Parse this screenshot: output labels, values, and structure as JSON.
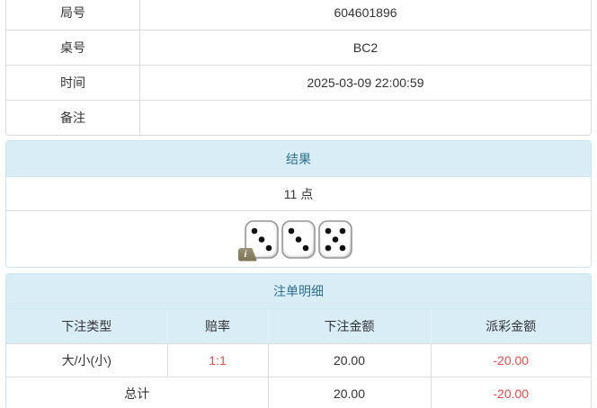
{
  "info_table": {
    "rows": [
      {
        "label": "局号",
        "value": "604601896"
      },
      {
        "label": "桌号",
        "value": "BC2"
      },
      {
        "label": "时间",
        "value": "2025-03-09 22:00:59"
      },
      {
        "label": "备注",
        "value": ""
      }
    ]
  },
  "result_card": {
    "title": "结果",
    "points": "11 点",
    "dice": [
      3,
      3,
      5
    ],
    "info_badge": "i"
  },
  "bet_card": {
    "title": "注单明细",
    "columns": [
      "下注类型",
      "赔率",
      "下注金额",
      "派彩金额"
    ],
    "rows": [
      {
        "type": "大/小(小)",
        "odds": "1:1",
        "amount": "20.00",
        "payout": "-20.00"
      }
    ],
    "total": {
      "label": "总计",
      "amount": "20.00",
      "payout": "-20.00"
    }
  },
  "colors": {
    "header_bg": "#d9edf7",
    "header_text": "#31708f",
    "card_border": "#c9e7f2",
    "grid_border": "#dddddd",
    "body_text": "#333333",
    "negative_red": "#f04a4b",
    "badge_olive": "#8b8259",
    "die_pip": "#111111"
  }
}
